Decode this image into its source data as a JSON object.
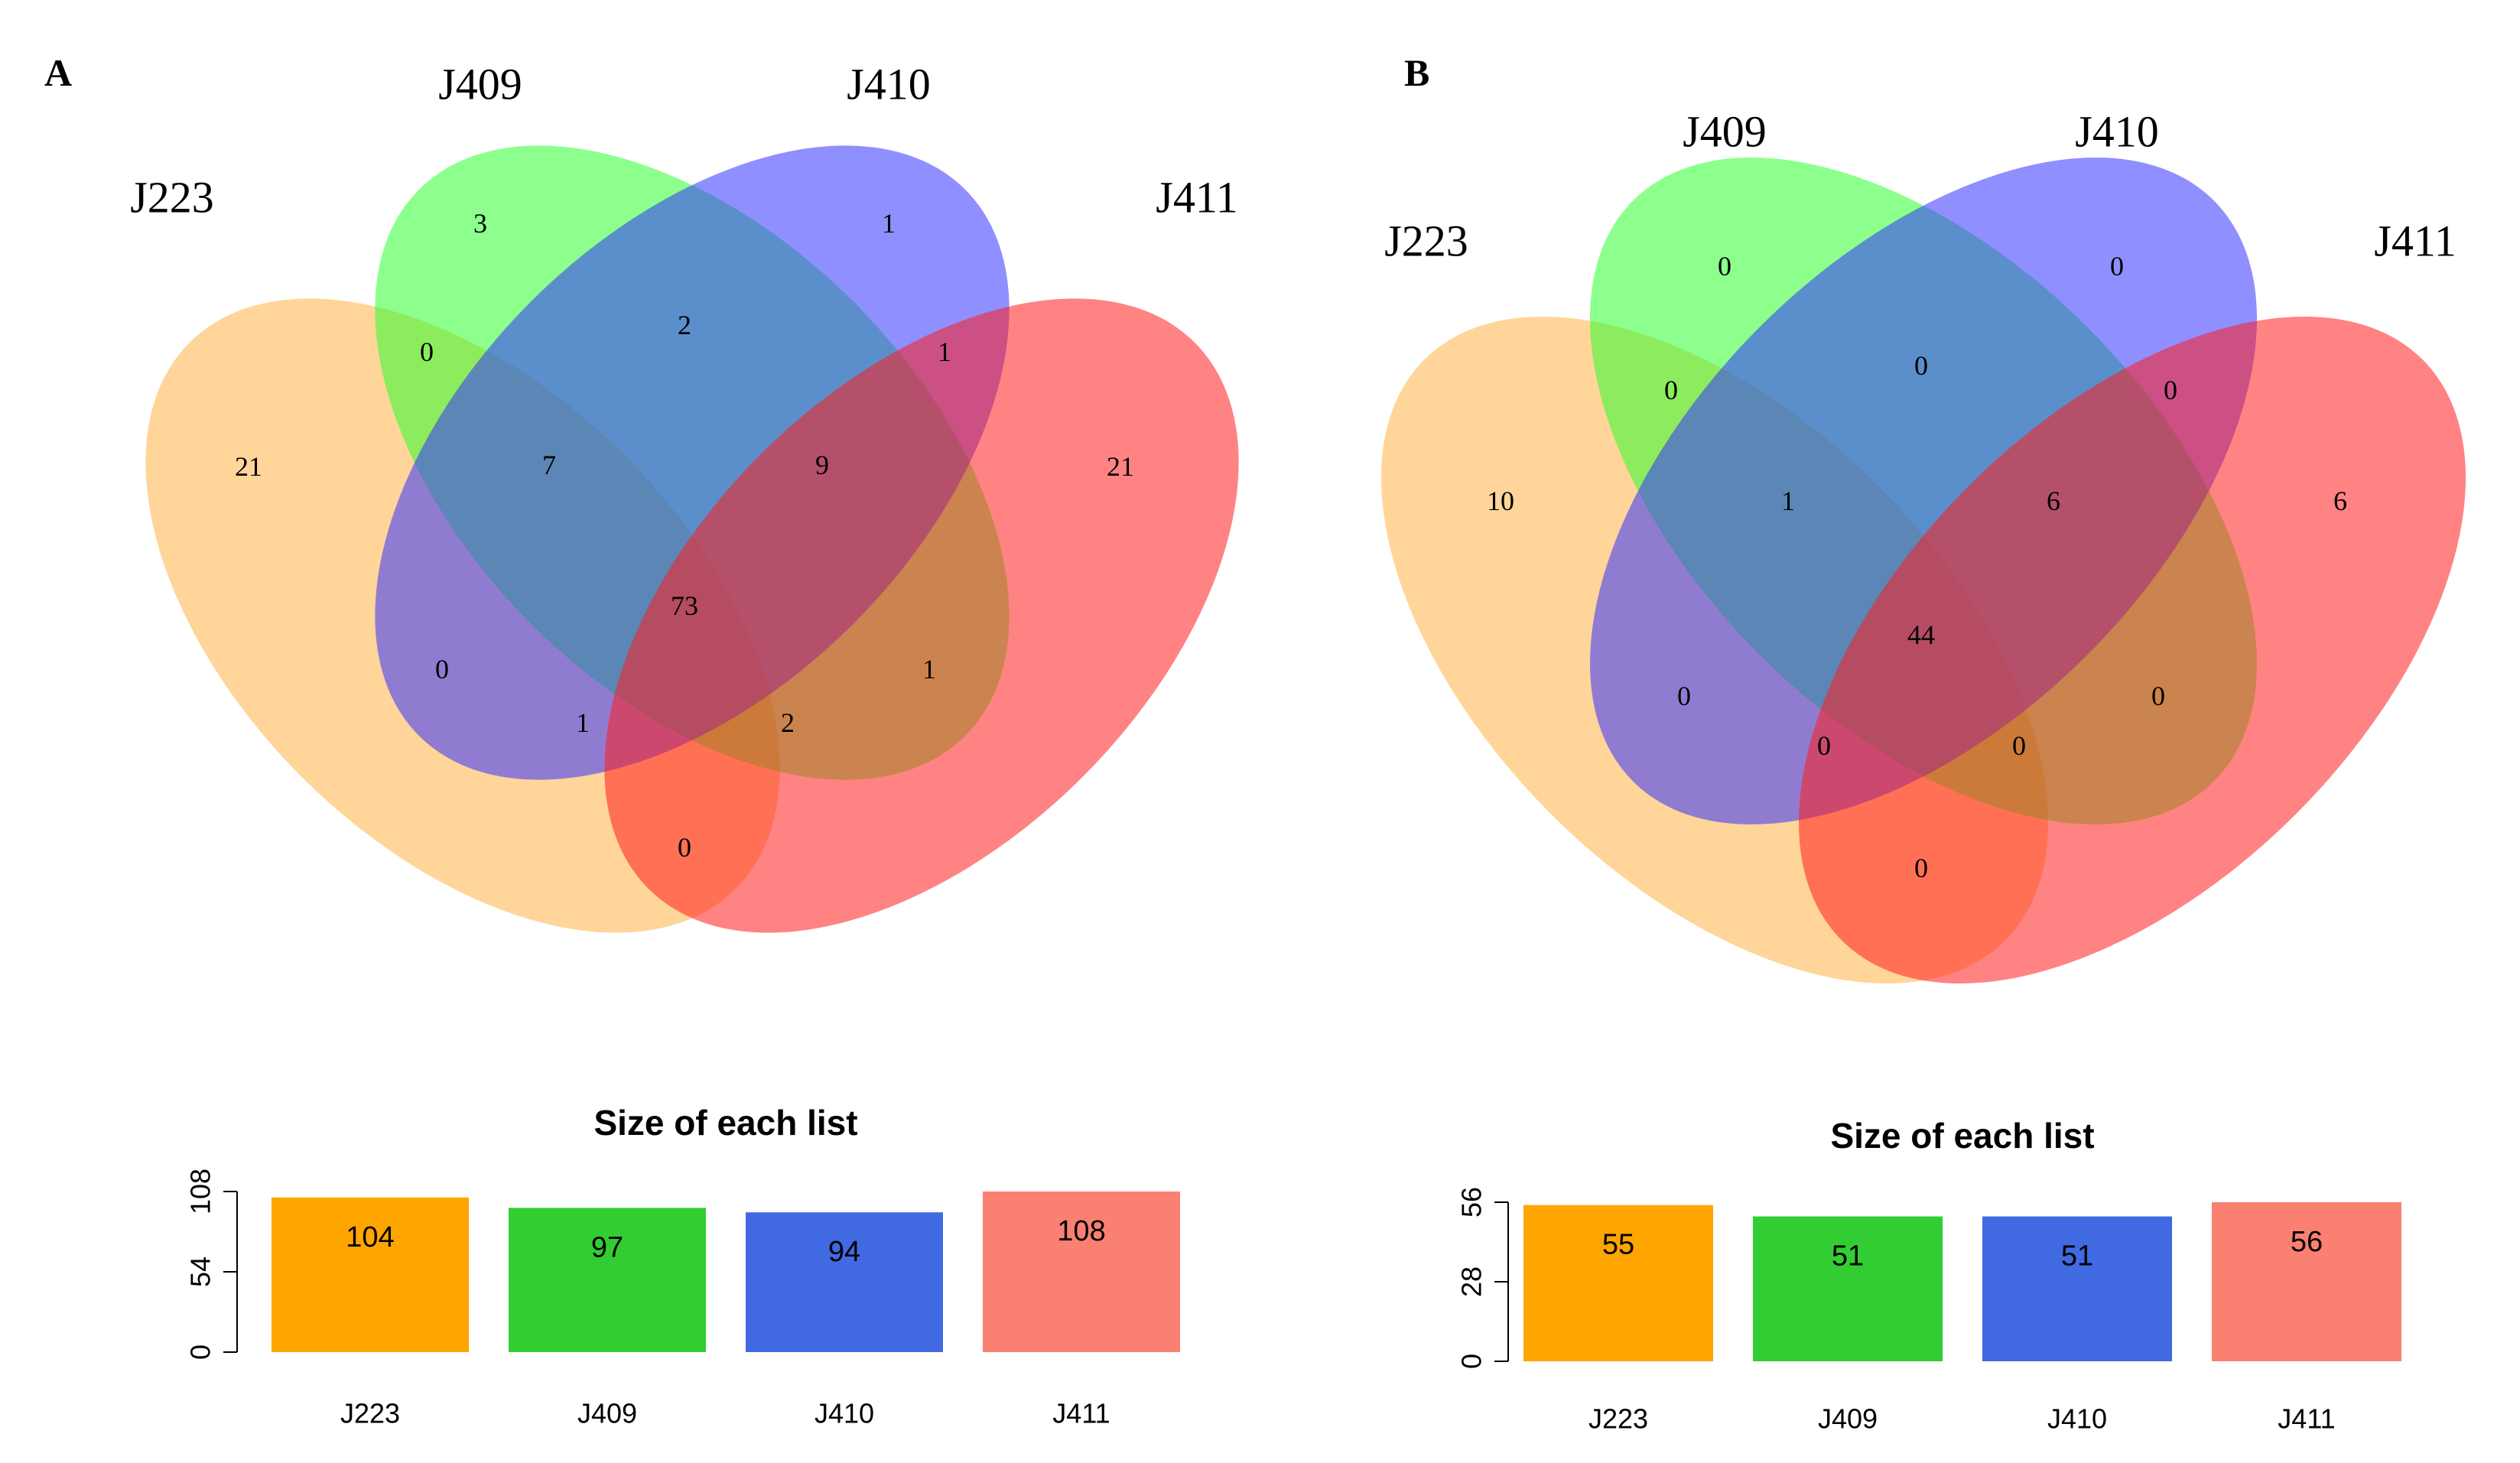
{
  "chart_data": [
    {
      "type": "venn",
      "panel_label": "A",
      "sets": [
        {
          "name": "J223",
          "color": "#FFB347"
        },
        {
          "name": "J409",
          "color": "#2EFF2E"
        },
        {
          "name": "J410",
          "color": "#3333FF"
        },
        {
          "name": "J411",
          "color": "#FF1E1E"
        }
      ],
      "regions": [
        {
          "sets": [
            "J223"
          ],
          "count": "21"
        },
        {
          "sets": [
            "J409"
          ],
          "count": "3"
        },
        {
          "sets": [
            "J410"
          ],
          "count": "1"
        },
        {
          "sets": [
            "J411"
          ],
          "count": "21"
        },
        {
          "sets": [
            "J223",
            "J409"
          ],
          "count": "0"
        },
        {
          "sets": [
            "J409",
            "J410"
          ],
          "count": "2"
        },
        {
          "sets": [
            "J410",
            "J411"
          ],
          "count": "1"
        },
        {
          "sets": [
            "J223",
            "J409",
            "J410"
          ],
          "count": "7"
        },
        {
          "sets": [
            "J409",
            "J410",
            "J411"
          ],
          "count": "9"
        },
        {
          "sets": [
            "J223",
            "J409",
            "J410",
            "J411"
          ],
          "count": "73"
        },
        {
          "sets": [
            "J223",
            "J410"
          ],
          "count": "0"
        },
        {
          "sets": [
            "J409",
            "J411"
          ],
          "count": "1"
        },
        {
          "sets": [
            "J223",
            "J410",
            "J411"
          ],
          "count": "1"
        },
        {
          "sets": [
            "J223",
            "J409",
            "J411"
          ],
          "count": "2"
        },
        {
          "sets": [
            "J223",
            "J411"
          ],
          "count": "0"
        }
      ]
    },
    {
      "type": "bar",
      "title": "Size of each list",
      "categories": [
        "J223",
        "J409",
        "J410",
        "J411"
      ],
      "values": [
        104,
        97,
        94,
        108
      ],
      "colors": [
        "#FFA500",
        "#32CD32",
        "#4169E1",
        "#FA8072"
      ],
      "yticks": [
        "0",
        "54",
        "108"
      ],
      "ylim": [
        0,
        108
      ]
    },
    {
      "type": "venn",
      "panel_label": "B",
      "sets": [
        {
          "name": "J223",
          "color": "#FFB347"
        },
        {
          "name": "J409",
          "color": "#2EFF2E"
        },
        {
          "name": "J410",
          "color": "#3333FF"
        },
        {
          "name": "J411",
          "color": "#FF1E1E"
        }
      ],
      "regions": [
        {
          "sets": [
            "J223"
          ],
          "count": "10"
        },
        {
          "sets": [
            "J409"
          ],
          "count": "0"
        },
        {
          "sets": [
            "J410"
          ],
          "count": "0"
        },
        {
          "sets": [
            "J411"
          ],
          "count": "6"
        },
        {
          "sets": [
            "J223",
            "J409"
          ],
          "count": "0"
        },
        {
          "sets": [
            "J409",
            "J410"
          ],
          "count": "0"
        },
        {
          "sets": [
            "J410",
            "J411"
          ],
          "count": "0"
        },
        {
          "sets": [
            "J223",
            "J409",
            "J410"
          ],
          "count": "1"
        },
        {
          "sets": [
            "J409",
            "J410",
            "J411"
          ],
          "count": "6"
        },
        {
          "sets": [
            "J223",
            "J409",
            "J410",
            "J411"
          ],
          "count": "44"
        },
        {
          "sets": [
            "J223",
            "J410"
          ],
          "count": "0"
        },
        {
          "sets": [
            "J409",
            "J411"
          ],
          "count": "0"
        },
        {
          "sets": [
            "J223",
            "J410",
            "J411"
          ],
          "count": "0"
        },
        {
          "sets": [
            "J223",
            "J409",
            "J411"
          ],
          "count": "0"
        },
        {
          "sets": [
            "J223",
            "J411"
          ],
          "count": "0"
        }
      ]
    },
    {
      "type": "bar",
      "title": "Size of each list",
      "categories": [
        "J223",
        "J409",
        "J410",
        "J411"
      ],
      "values": [
        55,
        51,
        51,
        56
      ],
      "colors": [
        "#FFA500",
        "#32CD32",
        "#4169E1",
        "#FA8072"
      ],
      "yticks": [
        "0",
        "28",
        "56"
      ],
      "ylim": [
        0,
        56
      ]
    }
  ]
}
